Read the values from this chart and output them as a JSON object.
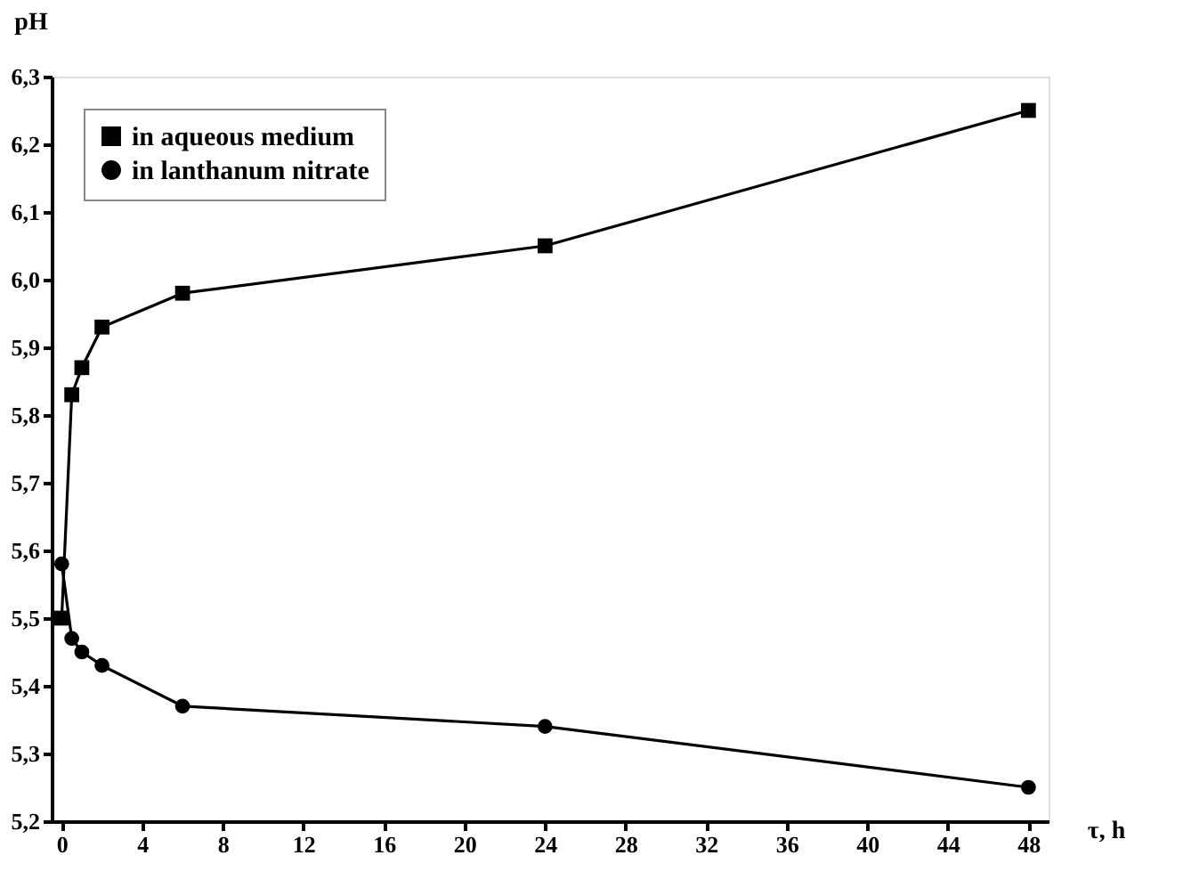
{
  "chart_data": {
    "type": "line",
    "xlabel": "τ, h",
    "ylabel": "pH",
    "xlim": [
      -0.5,
      49
    ],
    "xticks": [
      0,
      4,
      8,
      12,
      16,
      20,
      24,
      28,
      32,
      36,
      40,
      44,
      48
    ],
    "ylim": [
      5.2,
      6.3
    ],
    "yticks": [
      {
        "value": 5.2,
        "label": "5,2"
      },
      {
        "value": 5.3,
        "label": "5,3"
      },
      {
        "value": 5.4,
        "label": "5,4"
      },
      {
        "value": 5.5,
        "label": "5,5"
      },
      {
        "value": 5.6,
        "label": "5,6"
      },
      {
        "value": 5.7,
        "label": "5,7"
      },
      {
        "value": 5.8,
        "label": "5,8"
      },
      {
        "value": 5.9,
        "label": "5,9"
      },
      {
        "value": 6.0,
        "label": "6,0"
      },
      {
        "value": 6.1,
        "label": "6,1"
      },
      {
        "value": 6.2,
        "label": "6,2"
      },
      {
        "value": 6.3,
        "label": "6,3"
      }
    ],
    "x": [
      0,
      0.5,
      1,
      2,
      6,
      24,
      48
    ],
    "series": [
      {
        "name": "in aqueous medium",
        "color": "#000000",
        "marker": "square",
        "values": [
          5.5,
          5.83,
          5.87,
          5.93,
          5.98,
          6.05,
          6.25
        ]
      },
      {
        "name": "in lanthanum nitrate",
        "color": "#000000",
        "marker": "circle",
        "values": [
          5.58,
          5.47,
          5.45,
          5.43,
          5.37,
          5.34,
          5.25
        ]
      }
    ],
    "grid": false,
    "legend": "top left",
    "line_style": "solid"
  }
}
